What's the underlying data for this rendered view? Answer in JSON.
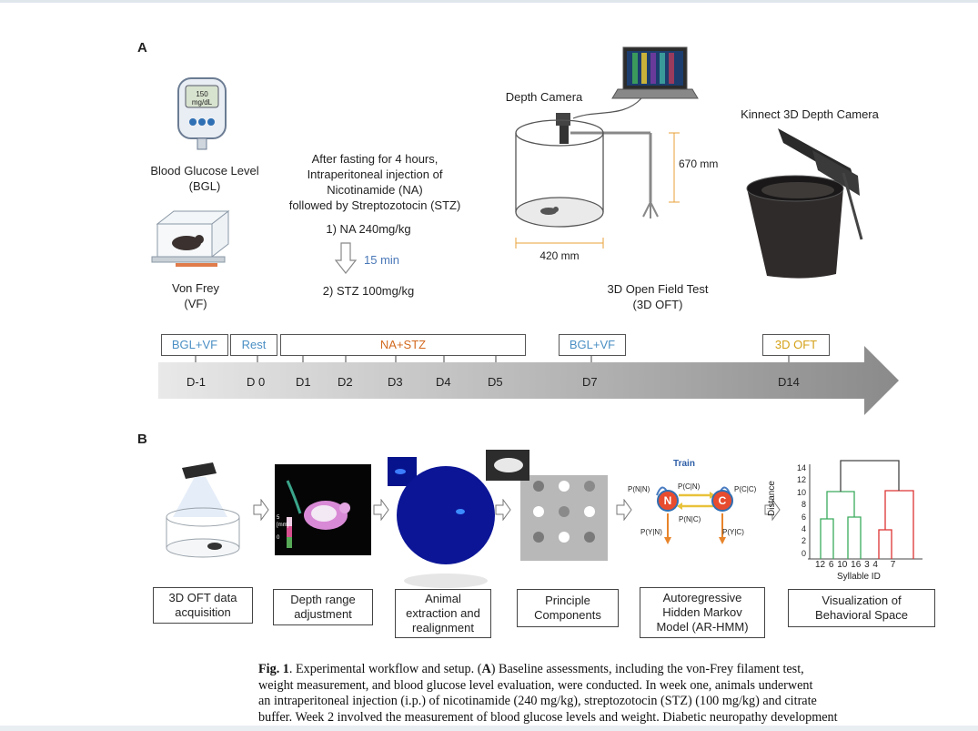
{
  "panelA": {
    "label": "A",
    "meter": {
      "value": "150",
      "unit": "mg/dL"
    },
    "bgl_title": [
      "Blood Glucose Level",
      "(BGL)"
    ],
    "vf_title": [
      "Von Frey",
      "(VF)"
    ],
    "injection": [
      "After fasting for 4 hours,",
      "Intraperitoneal injection of",
      "Nicotinamide (NA)",
      "followed by Streptozotocin (STZ)"
    ],
    "step1": "1) NA 240mg/kg",
    "interval": "15 min",
    "step2": "2) STZ 100mg/kg",
    "depth_camera": "Depth Camera",
    "height": "670 mm",
    "width": "420 mm",
    "oft_title": [
      "3D Open Field Test",
      "(3D OFT)"
    ],
    "kinnect": "Kinnect 3D Depth Camera"
  },
  "timeline": {
    "boxes": [
      {
        "label": "BGL+VF",
        "color": "#4a8fc4"
      },
      {
        "label": "Rest",
        "color": "#4a8fc4"
      },
      {
        "label": "NA+STZ",
        "color": "#d2691e"
      },
      {
        "label": "BGL+VF",
        "color": "#4a8fc4"
      },
      {
        "label": "3D OFT",
        "color": "#d4a017"
      }
    ],
    "days": [
      "D-1",
      "D 0",
      "D1",
      "D2",
      "D3",
      "D4",
      "D5",
      "D7",
      "D14"
    ]
  },
  "panelB": {
    "label": "B",
    "depth_scale": [
      "5",
      "[mm]",
      "0"
    ],
    "hmm": {
      "title": "Train",
      "states": [
        "N",
        "C"
      ],
      "labels": [
        "P(N|N)",
        "P(C|N)",
        "P(N|C)",
        "P(C|C)",
        "P(Y|N)",
        "P(Y|C)"
      ]
    },
    "dendrogram": {
      "ylabel": "Distance",
      "yticks": [
        "14",
        "12",
        "10",
        "8",
        "6",
        "4",
        "2",
        "0"
      ],
      "xticks": [
        "12",
        "6",
        "10",
        "16",
        "3",
        "4",
        "7"
      ],
      "xlabel": "Syllable ID"
    },
    "steps": [
      [
        "3D OFT data",
        "acquisition"
      ],
      [
        "Depth range",
        "adjustment"
      ],
      [
        "Animal",
        "extraction and",
        "realignment"
      ],
      [
        "Principle",
        "Components"
      ],
      [
        "Autoregressive",
        "Hidden Markov",
        "Model (AR-HMM)"
      ],
      [
        "Visualization of",
        "Behavioral Space"
      ]
    ]
  },
  "caption": {
    "label": "Fig. 1",
    "lines": [
      ". Experimental workflow and setup. (",
      "A",
      ") Baseline assessments, including the von-Frey filament test,",
      "weight measurement, and blood glucose level evaluation, were conducted. In week one, animals underwent",
      "an intraperitoneal injection (i.p.) of nicotinamide (240 mg/kg), streptozotocin (STZ) (100 mg/kg) and citrate",
      "buffer. Week 2 involved the measurement of blood glucose levels and weight. Diabetic neuropathy development"
    ]
  }
}
